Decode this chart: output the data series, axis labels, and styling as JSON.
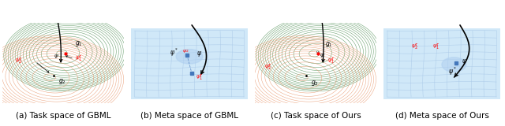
{
  "captions": [
    "(a) Task space of GBML",
    "(b) Meta space of GBML",
    "(c) Task space of Ours",
    "(d) Meta space of Ours"
  ],
  "caption_fontsize": 7.5,
  "figure_width": 6.4,
  "figure_height": 1.6,
  "background_color": "#ffffff",
  "green_color": "#4a8c50",
  "orange_color": "#e8956a",
  "grid_color": "#a8c8e8",
  "grid_bg": "#d0e8f8",
  "blue_marker": "#4477bb",
  "blue_shade": "#b0d0f0"
}
